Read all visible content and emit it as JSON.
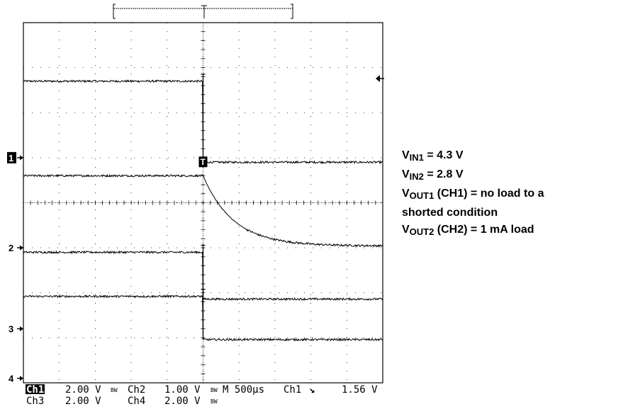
{
  "chart_data": {
    "type": "line",
    "title": "",
    "xlabel": "",
    "ylabel": "",
    "grid": true,
    "time_per_div_us": 500,
    "x_divisions": 10,
    "y_divisions": 8,
    "trigger_time_us": 2500,
    "trigger_source": "Ch1",
    "trigger_slope": "falling",
    "trigger_level_V": 1.56,
    "series": [
      {
        "name": "1",
        "marker_label": "1",
        "scale_V_per_div": 2.0,
        "ground_div_from_top": 3.0,
        "shape": "step_down_at_trigger",
        "level_before_div": 6.7,
        "level_after_div": 4.9
      },
      {
        "name": "2",
        "marker_label": "2",
        "scale_V_per_div": 1.0,
        "ground_div_from_top": 5.0,
        "shape": "exponential_decay_after_trigger",
        "level_before_div": 4.6,
        "level_after_div": 3.04,
        "decay_tau_us": 420
      },
      {
        "name": "3",
        "marker_label": "3",
        "scale_V_per_div": 2.0,
        "ground_div_from_top": 6.8,
        "shape": "step_down_at_trigger",
        "level_before_div": 2.9,
        "level_after_div": 1.86
      },
      {
        "name": "4",
        "marker_label": "4",
        "scale_V_per_div": 2.0,
        "ground_div_from_top": 7.9,
        "shape": "step_down_at_trigger",
        "level_before_div": 1.92,
        "level_after_div": 0.96
      }
    ]
  },
  "status": {
    "ch1_label": "Ch1",
    "ch1_scale": "2.00 V",
    "ch2_label": "Ch2",
    "ch2_scale": "1.00 V",
    "ch3_label": "Ch3",
    "ch3_scale": "2.00 V",
    "ch4_label": "Ch4",
    "ch4_scale": "2.00 V",
    "bw_label": "BW",
    "timebase_label": "M 500µs",
    "trigger_label": "Ch1",
    "trigger_slope_glyph": "↘",
    "trigger_level": "1.56 V"
  },
  "markers": {
    "ch1": "1",
    "ch2": "2",
    "ch3": "3",
    "ch4": "4",
    "trigger": "T",
    "arrow": "→"
  },
  "notes": {
    "vin1_main": "V",
    "vin1_sub": "IN1",
    "vin1_rest": " = 4.3 V",
    "vin2_main": "V",
    "vin2_sub": "IN2",
    "vin2_rest": " = 2.8 V",
    "vout1_main": "V",
    "vout1_sub": "OUT1",
    "vout1_rest": " (CH1) = no load to a",
    "vout1_cont": "shorted condition",
    "vout2_main": "V",
    "vout2_sub": "OUT2",
    "vout2_rest": " (CH2) = 1 mA load"
  }
}
